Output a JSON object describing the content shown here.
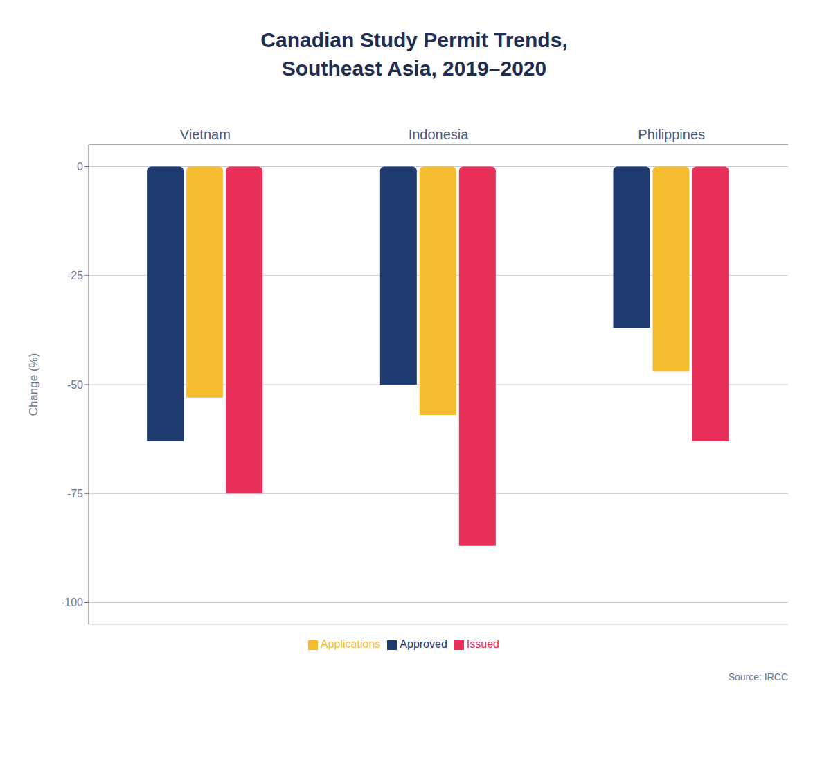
{
  "chart_data": {
    "type": "bar",
    "title": "Canadian Study Permit Trends,\nSoutheast Asia, 2019–2020",
    "ylabel": "Change (%)",
    "categories": [
      "Vietnam",
      "Indonesia",
      "Philippines"
    ],
    "series": [
      {
        "name": "Approved",
        "color": "#1e3a6e",
        "values": [
          -63,
          -50,
          -37
        ]
      },
      {
        "name": "Applications",
        "color": "#f5bc30",
        "values": [
          -53,
          -57,
          -47
        ]
      },
      {
        "name": "Issued",
        "color": "#e8305a",
        "values": [
          -75,
          -87,
          -63
        ]
      }
    ],
    "ylim": [
      -105,
      5
    ],
    "yticks": [
      0,
      -25,
      -50,
      -75,
      -100
    ],
    "grid": true,
    "legend": "bottom",
    "annotations": [
      "Source: IRCC"
    ]
  }
}
